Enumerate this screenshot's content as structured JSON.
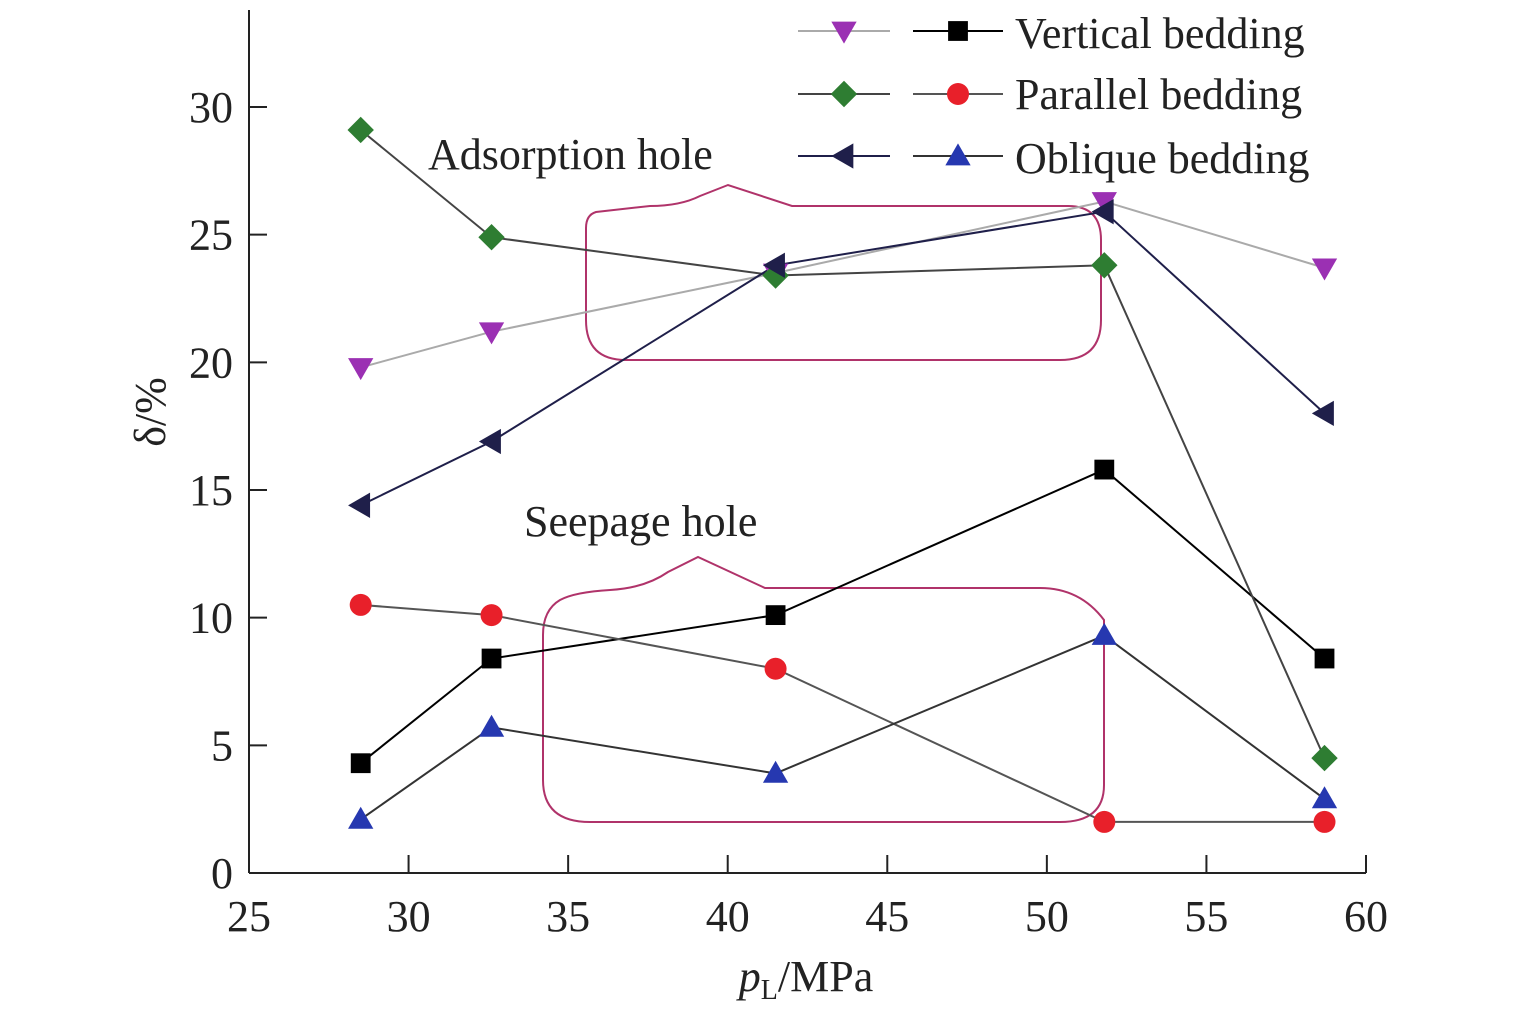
{
  "chart_data": {
    "type": "line",
    "xlabel": "pL/MPa",
    "xlabel_main": "p",
    "xlabel_sub": "L",
    "xlabel_unit": "/MPa",
    "ylabel": "δ/%",
    "xlim": [
      25,
      60
    ],
    "ylim": [
      0,
      30
    ],
    "x_ticks": [
      "25",
      "30",
      "35",
      "40",
      "45",
      "50",
      "55",
      "60"
    ],
    "y_ticks": [
      "0",
      "5",
      "10",
      "15",
      "20",
      "25",
      "30"
    ],
    "x_tick_values": [
      25,
      30,
      35,
      40,
      45,
      50,
      55,
      60
    ],
    "y_tick_values": [
      0,
      5,
      10,
      15,
      20,
      25,
      30
    ],
    "grid": false,
    "legend_position": "top-right",
    "legend_labels": [
      "Vertical bedding",
      "Parallel bedding",
      "Oblique bedding"
    ],
    "x": [
      28.5,
      32.6,
      41.5,
      51.8,
      58.7
    ],
    "series": [
      {
        "name": "Vertical bedding",
        "group": "Adsorption hole",
        "marker": "triangle-down",
        "color": "#9b30b3",
        "line_color": "#aaaaaa",
        "values": [
          19.8,
          21.2,
          23.5,
          26.3,
          23.7
        ]
      },
      {
        "name": "Vertical bedding",
        "group": "Seepage hole",
        "marker": "square",
        "color": "#000000",
        "line_color": "#000000",
        "values": [
          4.3,
          8.4,
          10.1,
          15.8,
          8.4
        ]
      },
      {
        "name": "Parallel bedding",
        "group": "Adsorption hole",
        "marker": "diamond",
        "color": "#2e7d32",
        "line_color": "#444444",
        "values": [
          29.1,
          24.9,
          23.4,
          23.8,
          4.5
        ]
      },
      {
        "name": "Parallel bedding",
        "group": "Seepage hole",
        "marker": "circle",
        "color": "#e8202a",
        "line_color": "#555555",
        "values": [
          10.5,
          10.1,
          8.0,
          2.0,
          2.0
        ]
      },
      {
        "name": "Oblique bedding",
        "group": "Adsorption hole",
        "marker": "triangle-left",
        "color": "#1f1f4a",
        "line_color": "#1f1f4a",
        "values": [
          14.4,
          16.9,
          23.8,
          25.9,
          18.0
        ]
      },
      {
        "name": "Oblique bedding",
        "group": "Seepage hole",
        "marker": "triangle-up",
        "color": "#2638b0",
        "line_color": "#333333",
        "values": [
          2.1,
          5.7,
          3.9,
          9.3,
          2.9
        ]
      }
    ],
    "annotations": [
      "Adsorption hole",
      "Seepage hole"
    ],
    "region_color": "#b0336a"
  }
}
